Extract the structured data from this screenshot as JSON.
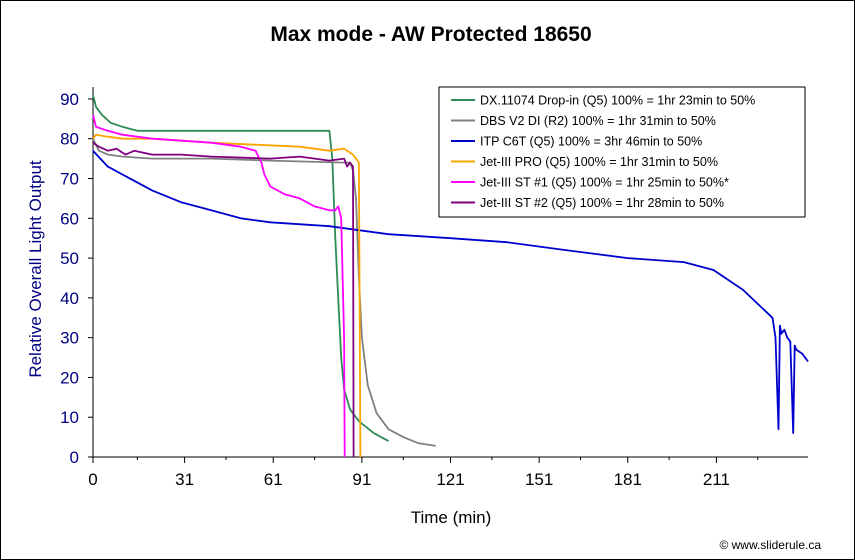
{
  "chart_data": {
    "type": "line",
    "title": "Max mode - AW Protected 18650",
    "xlabel": "Time (min)",
    "ylabel": "Relative Overall Light Output",
    "xlim": [
      0,
      242
    ],
    "ylim": [
      0,
      93
    ],
    "x_ticks": [
      0,
      31,
      61,
      91,
      121,
      151,
      181,
      211
    ],
    "y_ticks": [
      0,
      10,
      20,
      30,
      40,
      50,
      60,
      70,
      80,
      90
    ],
    "grid": false,
    "legend_position": "top-right",
    "credit": "© www.sliderule.ca",
    "series": [
      {
        "name": "DX.11074 Drop-in (Q5) 100% = 1hr 23min to 50%",
        "color": "#2e8b57",
        "points": [
          [
            0,
            91
          ],
          [
            1,
            88
          ],
          [
            3,
            86
          ],
          [
            6,
            84
          ],
          [
            10,
            83
          ],
          [
            15,
            82
          ],
          [
            25,
            82
          ],
          [
            40,
            82
          ],
          [
            60,
            82
          ],
          [
            78,
            82
          ],
          [
            80,
            82
          ],
          [
            81,
            75
          ],
          [
            81.5,
            65
          ],
          [
            82,
            55
          ],
          [
            83,
            40
          ],
          [
            84,
            25
          ],
          [
            85,
            17
          ],
          [
            87,
            12
          ],
          [
            90,
            9
          ],
          [
            95,
            6
          ],
          [
            100,
            4
          ]
        ]
      },
      {
        "name": "DBS V2 DI (R2) 100% = 1hr 31min to 50%",
        "color": "#808080",
        "points": [
          [
            0,
            80
          ],
          [
            2,
            77
          ],
          [
            5,
            76
          ],
          [
            10,
            75.5
          ],
          [
            20,
            75
          ],
          [
            40,
            75
          ],
          [
            60,
            74.5
          ],
          [
            85,
            74
          ],
          [
            87,
            74
          ],
          [
            88,
            72
          ],
          [
            89,
            65
          ],
          [
            90,
            45
          ],
          [
            91,
            30
          ],
          [
            93,
            18
          ],
          [
            96,
            11
          ],
          [
            100,
            7
          ],
          [
            105,
            5
          ],
          [
            110,
            3.5
          ],
          [
            116,
            2.8
          ]
        ]
      },
      {
        "name": "ITP C6T (Q5) 100% = 3hr 46min to 50%",
        "color": "#0000cd",
        "points": [
          [
            0,
            77
          ],
          [
            5,
            73
          ],
          [
            10,
            71
          ],
          [
            20,
            67
          ],
          [
            30,
            64
          ],
          [
            40,
            62
          ],
          [
            50,
            60
          ],
          [
            60,
            59
          ],
          [
            80,
            58
          ],
          [
            100,
            56
          ],
          [
            121,
            55
          ],
          [
            140,
            54
          ],
          [
            160,
            52
          ],
          [
            181,
            50
          ],
          [
            200,
            49
          ],
          [
            210,
            47
          ],
          [
            220,
            42
          ],
          [
            230,
            35
          ],
          [
            231,
            30
          ],
          [
            232,
            7
          ],
          [
            232.5,
            33
          ],
          [
            233,
            31
          ],
          [
            234,
            32
          ],
          [
            235,
            30
          ],
          [
            236,
            29
          ],
          [
            237,
            6
          ],
          [
            237.5,
            28
          ],
          [
            238,
            27
          ],
          [
            240,
            26
          ],
          [
            242,
            24
          ]
        ]
      },
      {
        "name": "Jet-III PRO (Q5) 100% = 1hr 31min to 50%",
        "color": "#ffa500",
        "points": [
          [
            0,
            80
          ],
          [
            1,
            81
          ],
          [
            5,
            80.5
          ],
          [
            10,
            80
          ],
          [
            20,
            80
          ],
          [
            30,
            79.5
          ],
          [
            40,
            79
          ],
          [
            55,
            78.5
          ],
          [
            70,
            78
          ],
          [
            80,
            77
          ],
          [
            85,
            77.5
          ],
          [
            88,
            76
          ],
          [
            89,
            75
          ],
          [
            90,
            74
          ],
          [
            90.3,
            30
          ],
          [
            90.5,
            0
          ]
        ]
      },
      {
        "name": "Jet-III ST #1 (Q5) 100% = 1hr 25min to 50%*",
        "color": "#ff00ff",
        "points": [
          [
            0,
            86
          ],
          [
            1,
            83
          ],
          [
            5,
            82
          ],
          [
            10,
            81
          ],
          [
            20,
            80
          ],
          [
            30,
            79.5
          ],
          [
            40,
            79
          ],
          [
            50,
            78
          ],
          [
            55,
            77
          ],
          [
            57,
            74
          ],
          [
            58,
            71
          ],
          [
            60,
            68
          ],
          [
            65,
            66
          ],
          [
            70,
            65
          ],
          [
            75,
            63
          ],
          [
            80,
            62
          ],
          [
            82,
            62
          ],
          [
            83,
            63
          ],
          [
            84,
            60
          ],
          [
            85,
            30
          ],
          [
            85.2,
            0
          ]
        ]
      },
      {
        "name": "Jet-III ST #2 (Q5) 100% = 1hr 28min to 50%",
        "color": "#800080",
        "points": [
          [
            0,
            79
          ],
          [
            2,
            78
          ],
          [
            5,
            77
          ],
          [
            8,
            77.5
          ],
          [
            11,
            76
          ],
          [
            14,
            77
          ],
          [
            20,
            76
          ],
          [
            30,
            76
          ],
          [
            40,
            75.5
          ],
          [
            60,
            75
          ],
          [
            70,
            75.5
          ],
          [
            80,
            74.5
          ],
          [
            85,
            75
          ],
          [
            86,
            73
          ],
          [
            87,
            74
          ],
          [
            88,
            73
          ],
          [
            88.2,
            0
          ]
        ]
      }
    ]
  }
}
